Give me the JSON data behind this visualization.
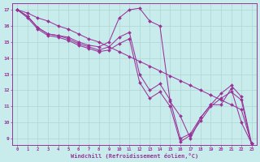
{
  "xlabel": "Windchill (Refroidissement éolien,°C)",
  "bg_color": "#c8ecec",
  "grid_color": "#b0d4d4",
  "line_color": "#993399",
  "xlim_min": -0.5,
  "xlim_max": 23.5,
  "ylim_min": 8.6,
  "ylim_max": 17.4,
  "yticks": [
    9,
    10,
    11,
    12,
    13,
    14,
    15,
    16,
    17
  ],
  "xticks": [
    0,
    1,
    2,
    3,
    4,
    5,
    6,
    7,
    8,
    9,
    10,
    11,
    12,
    13,
    14,
    15,
    16,
    17,
    18,
    19,
    20,
    21,
    22,
    23
  ],
  "series": [
    [
      17.0,
      16.6,
      15.9,
      15.5,
      15.4,
      15.3,
      15.0,
      14.8,
      14.7,
      15.0,
      16.5,
      17.0,
      17.1,
      16.3,
      16.0,
      11.3,
      10.4,
      9.0,
      10.3,
      11.1,
      11.1,
      12.1,
      10.0,
      8.7
    ],
    [
      17.0,
      16.6,
      15.9,
      15.5,
      15.4,
      15.2,
      14.9,
      14.7,
      14.5,
      14.7,
      15.3,
      15.6,
      13.0,
      12.0,
      12.4,
      11.4,
      9.0,
      9.3,
      10.3,
      11.1,
      11.8,
      12.3,
      11.6,
      8.7
    ],
    [
      17.0,
      16.5,
      15.8,
      15.4,
      15.3,
      15.1,
      14.8,
      14.6,
      14.4,
      14.5,
      14.9,
      15.2,
      12.5,
      11.5,
      11.9,
      11.0,
      8.8,
      9.2,
      10.1,
      11.0,
      11.5,
      11.9,
      11.4,
      8.6
    ],
    [
      17.0,
      16.8,
      16.5,
      16.3,
      16.0,
      15.8,
      15.5,
      15.2,
      15.0,
      14.7,
      14.4,
      14.1,
      13.8,
      13.5,
      13.2,
      12.9,
      12.6,
      12.3,
      12.0,
      11.7,
      11.4,
      11.1,
      10.8,
      8.7
    ]
  ]
}
